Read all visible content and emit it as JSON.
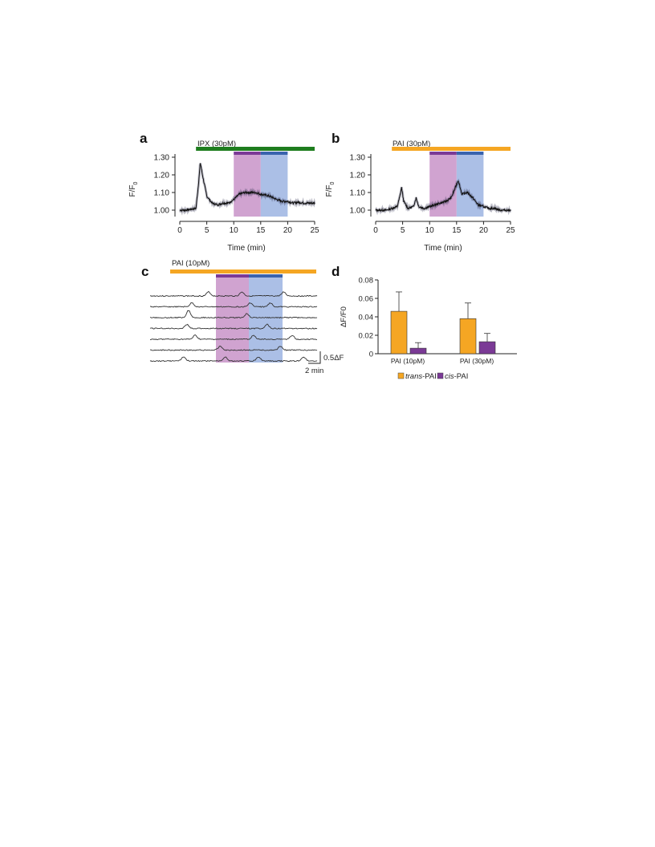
{
  "panels": {
    "a": {
      "label": "a",
      "drug_label": "IPX (30pM)",
      "drug_color": "#1e7d1e",
      "ylabel": "F/F",
      "ylabel_sub": "0",
      "xlabel": "Time (min)",
      "xticks": [
        "0",
        "5",
        "10",
        "15",
        "20",
        "25"
      ],
      "yticks": [
        "1.00",
        "1.10",
        "1.20",
        "1.30"
      ]
    },
    "b": {
      "label": "b",
      "drug_label": "PAI (30pM)",
      "drug_color": "#f5a623",
      "ylabel": "F/F",
      "ylabel_sub": "0",
      "xlabel": "Time (min)",
      "xticks": [
        "0",
        "5",
        "10",
        "15",
        "20",
        "25"
      ],
      "yticks": [
        "1.00",
        "1.10",
        "1.20",
        "1.30"
      ]
    },
    "c": {
      "label": "c",
      "drug_label": "PAI (10pM)",
      "drug_color": "#f5a623",
      "scale_y_label": "0.5ΔF",
      "scale_x_label": "2 min",
      "trace_count": 7
    },
    "d": {
      "label": "d",
      "ylabel": "ΔF/F0",
      "yticks": [
        "0",
        "0.02",
        "0.04",
        "0.06",
        "0.08"
      ],
      "categories": [
        "PAI (10pM)",
        "PAI (30pM)"
      ],
      "legend": [
        {
          "italic": "trans",
          "rest": "-PAI",
          "color": "#f5a623"
        },
        {
          "italic": "cis",
          "rest": "-PAI",
          "color": "#7b3a96"
        }
      ]
    }
  },
  "colors": {
    "violet_window": "#c084c0",
    "violet_bar": "#7b3a96",
    "blue_window": "#8fa9dd",
    "blue_bar": "#3a63ad",
    "trans": "#f5a623",
    "cis": "#7b3a96"
  },
  "chart_data": [
    {
      "panel": "a",
      "type": "line",
      "xlabel": "Time (min)",
      "ylabel": "F/F0",
      "xlim": [
        0,
        25
      ],
      "ylim": [
        0.97,
        1.32
      ],
      "drug_period": [
        3,
        25
      ],
      "violet_window": [
        10,
        15
      ],
      "blue_window": [
        15,
        20
      ],
      "series": [
        {
          "x": [
            0,
            1,
            2,
            3,
            3.5,
            3.8,
            4.2,
            5,
            6,
            7,
            8,
            9,
            10,
            11,
            12,
            13,
            14,
            15,
            16,
            17,
            18,
            19,
            20,
            21,
            22,
            23,
            24,
            25
          ],
          "y": [
            1.0,
            1.0,
            1.005,
            1.01,
            1.16,
            1.27,
            1.2,
            1.08,
            1.04,
            1.03,
            1.04,
            1.04,
            1.06,
            1.09,
            1.1,
            1.1,
            1.1,
            1.09,
            1.085,
            1.075,
            1.06,
            1.05,
            1.05,
            1.04,
            1.045,
            1.04,
            1.04,
            1.04
          ]
        }
      ]
    },
    {
      "panel": "b",
      "type": "line",
      "xlabel": "Time (min)",
      "ylabel": "F/F0",
      "xlim": [
        0,
        25
      ],
      "ylim": [
        0.97,
        1.32
      ],
      "drug_period": [
        3,
        25
      ],
      "violet_window": [
        10,
        15
      ],
      "blue_window": [
        15,
        20
      ],
      "series": [
        {
          "x": [
            0,
            1,
            2,
            3,
            4,
            4.5,
            4.8,
            5.2,
            6,
            7,
            7.5,
            8,
            9,
            10,
            11,
            12,
            13,
            14,
            14.8,
            15.3,
            16,
            17,
            18,
            19,
            20,
            21,
            22,
            23,
            24,
            25
          ],
          "y": [
            1.0,
            1.0,
            1.0,
            1.01,
            1.02,
            1.08,
            1.13,
            1.05,
            1.01,
            1.02,
            1.07,
            1.02,
            1.01,
            1.02,
            1.03,
            1.04,
            1.05,
            1.07,
            1.13,
            1.17,
            1.09,
            1.1,
            1.07,
            1.03,
            1.02,
            1.01,
            1.01,
            1.0,
            1.0,
            1.0
          ]
        }
      ]
    },
    {
      "panel": "d",
      "type": "bar",
      "ylabel": "ΔF/F0",
      "ylim": [
        0,
        0.08
      ],
      "categories": [
        "PAI (10pM)",
        "PAI (30pM)"
      ],
      "series": [
        {
          "name": "trans-PAI",
          "values": [
            0.046,
            0.038
          ],
          "errors": [
            0.021,
            0.017
          ]
        },
        {
          "name": "cis-PAI",
          "values": [
            0.006,
            0.013
          ],
          "errors": [
            0.006,
            0.009
          ]
        }
      ]
    }
  ]
}
